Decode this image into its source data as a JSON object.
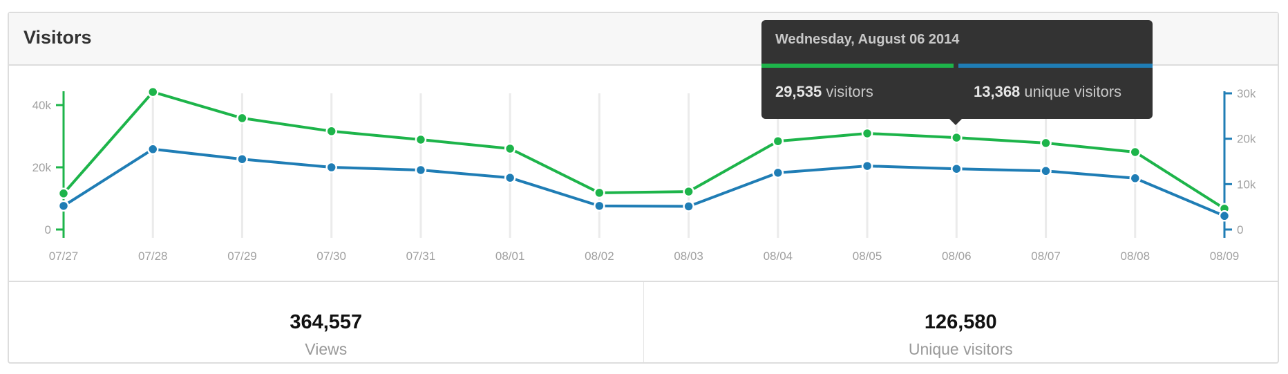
{
  "header": {
    "title": "Visitors"
  },
  "chart_data": {
    "type": "line",
    "x": [
      "07/27",
      "07/28",
      "07/29",
      "07/30",
      "07/31",
      "08/01",
      "08/02",
      "08/03",
      "08/04",
      "08/05",
      "08/06",
      "08/07",
      "08/08",
      "08/09"
    ],
    "series": [
      {
        "name": "visitors",
        "axis": "left",
        "color": "#1db44a",
        "values": [
          11600,
          44200,
          35800,
          31600,
          28900,
          26000,
          11800,
          12200,
          28400,
          30900,
          29535,
          27800,
          24900,
          6700
        ]
      },
      {
        "name": "unique visitors",
        "axis": "right",
        "color": "#1f7db5",
        "values": [
          5200,
          17700,
          15500,
          13700,
          13100,
          11400,
          5200,
          5100,
          12500,
          14000,
          13368,
          12900,
          11300,
          3000
        ]
      }
    ],
    "y_left": {
      "ticks": [
        "0",
        "20k",
        "40k"
      ],
      "tick_values": [
        0,
        20000,
        40000
      ],
      "color": "#1db44a"
    },
    "y_right": {
      "ticks": [
        "0",
        "10k",
        "20k",
        "30k"
      ],
      "tick_values": [
        0,
        10000,
        20000,
        30000
      ],
      "color": "#1f7db5"
    },
    "grid": "vertical",
    "highlighted": "08/06"
  },
  "tooltip": {
    "date": "Wednesday, August 06 2014",
    "visitors_value": "29,535",
    "visitors_label": "visitors",
    "unique_value": "13,368",
    "unique_label": "unique visitors"
  },
  "stats": [
    {
      "value": "364,557",
      "label": "Views"
    },
    {
      "value": "126,580",
      "label": "Unique visitors"
    }
  ]
}
